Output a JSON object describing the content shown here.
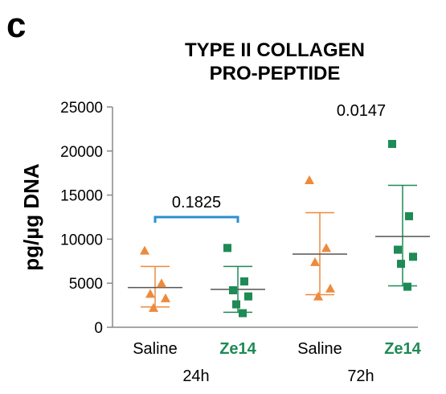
{
  "panel_label": "c",
  "chart_data": {
    "type": "scatter",
    "title_lines": [
      "TYPE II COLLAGEN",
      "PRO-PEPTIDE"
    ],
    "ylabel": "pg/µg DNA",
    "ylim": [
      0,
      25000
    ],
    "yticks": [
      {
        "value": 0,
        "label": "0"
      },
      {
        "value": 5000,
        "label": "5000"
      },
      {
        "value": 10000,
        "label": "10000"
      },
      {
        "value": 15000,
        "label": "15000"
      },
      {
        "value": 20000,
        "label": "20000"
      },
      {
        "value": 25000,
        "label": "25000"
      }
    ],
    "time_groups": [
      "24h",
      "72h"
    ],
    "groups": [
      {
        "label": "Saline",
        "time": "24h",
        "color": "#ee8a3c",
        "marker": "triangle",
        "points": [
          8700,
          5000,
          3800,
          3300,
          2200
        ],
        "mean": 4500,
        "error": [
          2300,
          6900
        ]
      },
      {
        "label": "Ze14",
        "time": "24h",
        "color": "#1e8a55",
        "marker": "square",
        "points": [
          9000,
          5200,
          4200,
          3500,
          2600,
          1600
        ],
        "mean": 4300,
        "error": [
          1700,
          6900
        ]
      },
      {
        "label": "Saline",
        "time": "72h",
        "color": "#ee8a3c",
        "marker": "triangle",
        "points": [
          16700,
          9000,
          7400,
          4400,
          3500
        ],
        "mean": 8300,
        "error": [
          3700,
          13000
        ]
      },
      {
        "label": "Ze14",
        "time": "72h",
        "color": "#1e8a55",
        "marker": "square",
        "points": [
          20800,
          12600,
          8800,
          8000,
          7200,
          4600
        ],
        "mean": 10300,
        "error": [
          4700,
          16100
        ]
      }
    ],
    "annotations": [
      {
        "text": "0.1825",
        "type": "bracket",
        "groups": [
          0,
          1
        ],
        "y": 12500
      },
      {
        "text": "0.0147",
        "type": "label",
        "groups": [
          2,
          3
        ],
        "y": 24000
      }
    ]
  }
}
